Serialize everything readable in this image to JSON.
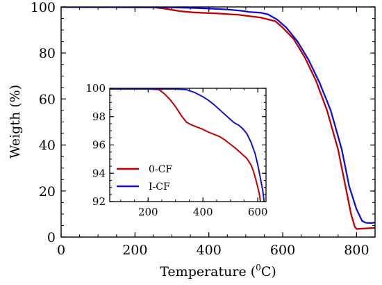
{
  "chart_data": [
    {
      "type": "line",
      "title": "",
      "xlabel": "Temperature (",
      "xlabel_unit_sup": "0",
      "xlabel_unit_tail": "C)",
      "ylabel": "Weigth (%)",
      "xlim": [
        0,
        850
      ],
      "ylim": [
        0,
        100
      ],
      "x_ticks": [
        0,
        200,
        400,
        600,
        800
      ],
      "y_ticks": [
        0,
        20,
        40,
        60,
        80,
        100
      ],
      "grid": false,
      "series": [
        {
          "name": "0-CF",
          "color": "#c00000",
          "points": [
            [
              0,
              100
            ],
            [
              250,
              99.8
            ],
            [
              280,
              99.3
            ],
            [
              320,
              98.2
            ],
            [
              360,
              97.6
            ],
            [
              420,
              97.2
            ],
            [
              480,
              96.6
            ],
            [
              540,
              95.4
            ],
            [
              580,
              93.8
            ],
            [
              600,
              91
            ],
            [
              630,
              86
            ],
            [
              660,
              78
            ],
            [
              690,
              68
            ],
            [
              720,
              55
            ],
            [
              750,
              38
            ],
            [
              770,
              22
            ],
            [
              785,
              10
            ],
            [
              795,
              4.5
            ],
            [
              800,
              3.5
            ],
            [
              820,
              3.7
            ],
            [
              850,
              4
            ]
          ]
        },
        {
          "name": "I-CF",
          "color": "#1010d0",
          "points": [
            [
              0,
              100
            ],
            [
              300,
              99.8
            ],
            [
              350,
              99.6
            ],
            [
              400,
              99.3
            ],
            [
              450,
              98.9
            ],
            [
              490,
              98.3
            ],
            [
              510,
              97.8
            ],
            [
              540,
              97.5
            ],
            [
              560,
              96.8
            ],
            [
              585,
              94.5
            ],
            [
              610,
              91
            ],
            [
              640,
              85
            ],
            [
              670,
              77
            ],
            [
              700,
              67
            ],
            [
              730,
              55
            ],
            [
              760,
              38
            ],
            [
              780,
              22
            ],
            [
              800,
              12
            ],
            [
              815,
              7
            ],
            [
              825,
              6.2
            ],
            [
              840,
              6.1
            ],
            [
              850,
              6.3
            ]
          ]
        }
      ]
    },
    {
      "type": "line",
      "title": "",
      "xlim": [
        60,
        630
      ],
      "ylim": [
        92,
        100
      ],
      "x_ticks": [
        200,
        400,
        600
      ],
      "y_ticks": [
        92,
        94,
        96,
        98,
        100
      ],
      "legend_position": "lower-left",
      "grid": false,
      "series": [
        {
          "name": "0-CF",
          "color": "#c00000",
          "points": [
            [
              60,
              99.95
            ],
            [
              200,
              99.95
            ],
            [
              240,
              99.9
            ],
            [
              260,
              99.6
            ],
            [
              280,
              99.2
            ],
            [
              300,
              98.7
            ],
            [
              320,
              98.1
            ],
            [
              340,
              97.6
            ],
            [
              360,
              97.4
            ],
            [
              380,
              97.25
            ],
            [
              400,
              97.1
            ],
            [
              420,
              96.9
            ],
            [
              440,
              96.75
            ],
            [
              460,
              96.6
            ],
            [
              480,
              96.35
            ],
            [
              500,
              96.05
            ],
            [
              520,
              95.75
            ],
            [
              540,
              95.4
            ],
            [
              560,
              95.05
            ],
            [
              575,
              94.6
            ],
            [
              585,
              94.1
            ],
            [
              595,
              93.4
            ],
            [
              605,
              92.6
            ],
            [
              610,
              92
            ]
          ]
        },
        {
          "name": "I-CF",
          "color": "#1010d0",
          "points": [
            [
              60,
              99.95
            ],
            [
              300,
              99.95
            ],
            [
              340,
              99.9
            ],
            [
              370,
              99.7
            ],
            [
              400,
              99.4
            ],
            [
              420,
              99.15
            ],
            [
              440,
              98.85
            ],
            [
              460,
              98.5
            ],
            [
              480,
              98.15
            ],
            [
              500,
              97.8
            ],
            [
              515,
              97.55
            ],
            [
              530,
              97.4
            ],
            [
              545,
              97.15
            ],
            [
              560,
              96.8
            ],
            [
              575,
              96.2
            ],
            [
              590,
              95.4
            ],
            [
              600,
              94.6
            ],
            [
              610,
              93.6
            ],
            [
              618,
              92.8
            ],
            [
              623,
              92
            ]
          ]
        }
      ]
    }
  ]
}
